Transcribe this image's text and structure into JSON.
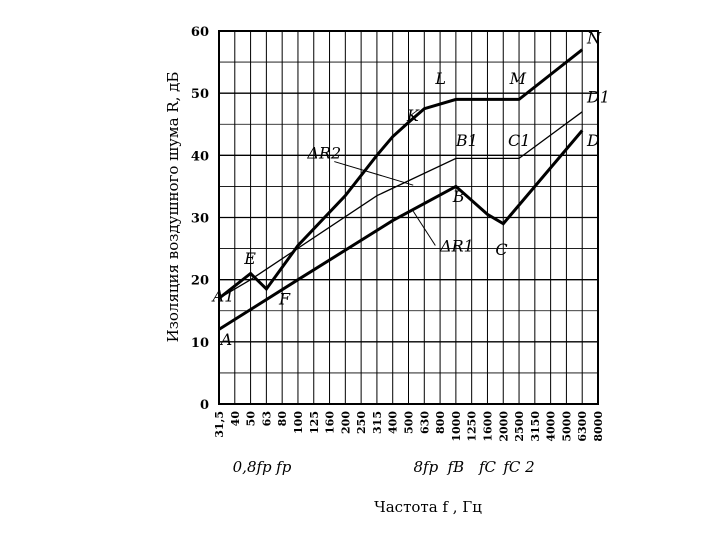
{
  "chart_data": {
    "type": "line",
    "ylabel": "Изоляция воздушного шума R, дБ",
    "xlabel": "Частота f , Гц",
    "ylim": [
      0,
      60
    ],
    "yticks": [
      0,
      10,
      20,
      30,
      40,
      50,
      60
    ],
    "grid": true,
    "categories": [
      "31,5",
      "40",
      "50",
      "63",
      "80",
      "100",
      "125",
      "160",
      "200",
      "250",
      "315",
      "400",
      "500",
      "630",
      "800",
      "1000",
      "1250",
      "1600",
      "2000",
      "2500",
      "3150",
      "4000",
      "5000",
      "6300",
      "8000"
    ],
    "annotations_x": [
      {
        "text": "0,8fр",
        "at": 2.1
      },
      {
        "text": "fр",
        "at": 4.1
      },
      {
        "text": "8fр",
        "at": 13.1
      },
      {
        "text": "fB",
        "at": 15.0
      },
      {
        "text": "fC",
        "at": 17.0
      },
      {
        "text": "fC 2",
        "at": 19.0
      }
    ],
    "series": [
      {
        "style": "bold",
        "points": [
          [
            0,
            17
          ],
          [
            2,
            21
          ],
          [
            3,
            18.5
          ],
          [
            4,
            22
          ],
          [
            5,
            25.5
          ],
          [
            8,
            33.5
          ],
          [
            10,
            40
          ],
          [
            11,
            43
          ],
          [
            12,
            45.3
          ],
          [
            13,
            47.5
          ],
          [
            15,
            49
          ],
          [
            19,
            49
          ],
          [
            21,
            53
          ],
          [
            23,
            57
          ]
        ]
      },
      {
        "style": "thin",
        "points": [
          [
            0,
            17
          ],
          [
            2,
            20
          ],
          [
            10,
            33.5
          ],
          [
            15,
            39.5
          ],
          [
            19,
            39.5
          ],
          [
            23,
            47
          ]
        ]
      },
      {
        "style": "bold",
        "points": [
          [
            0,
            12
          ],
          [
            5,
            20
          ],
          [
            11,
            29.5
          ],
          [
            15,
            35
          ],
          [
            17,
            30.5
          ],
          [
            18,
            29
          ],
          [
            19,
            32
          ],
          [
            23,
            44
          ]
        ]
      }
    ],
    "point_labels": [
      {
        "text": "N",
        "x": 23.3,
        "y": 58
      },
      {
        "text": "M",
        "x": 18.4,
        "y": 51.5
      },
      {
        "text": "L",
        "x": 13.7,
        "y": 51.5
      },
      {
        "text": "K",
        "x": 11.9,
        "y": 45.5
      },
      {
        "text": "D1",
        "x": 23.3,
        "y": 48.5
      },
      {
        "text": "B1",
        "x": 15.0,
        "y": 41.5
      },
      {
        "text": "C1",
        "x": 18.3,
        "y": 41.5
      },
      {
        "text": "D",
        "x": 23.3,
        "y": 41.5
      },
      {
        "text": "ΔR2",
        "x": 5.6,
        "y": 39.5
      },
      {
        "text": "B",
        "x": 14.8,
        "y": 32.5
      },
      {
        "text": "ΔR1",
        "x": 14.0,
        "y": 24.5
      },
      {
        "text": "C",
        "x": 17.5,
        "y": 24.0
      },
      {
        "text": "E",
        "x": 1.6,
        "y": 22.5
      },
      {
        "text": "A1",
        "x": -0.4,
        "y": 16.5
      },
      {
        "text": "F",
        "x": 3.8,
        "y": 16.0
      },
      {
        "text": "A",
        "x": 0.1,
        "y": 9.5
      }
    ],
    "leaders": [
      {
        "label": "ΔR2",
        "from": [
          7.3,
          39.0
        ],
        "to": [
          12.3,
          35.2
        ]
      },
      {
        "label": "ΔR1",
        "from": [
          13.7,
          25.5
        ],
        "to": [
          12.3,
          31.0
        ]
      }
    ]
  }
}
